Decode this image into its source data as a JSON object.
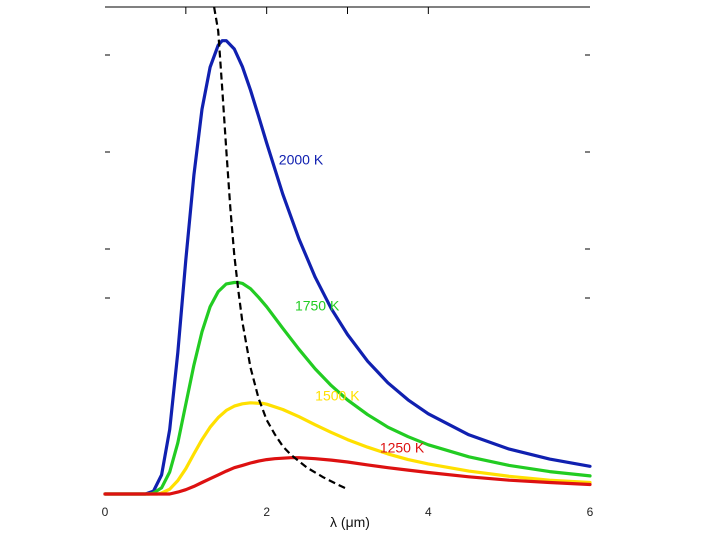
{
  "chart_data": {
    "type": "line",
    "title": "",
    "xlabel": "λ (μm)",
    "ylabel": "",
    "xlim": [
      0,
      6
    ],
    "ylim": [
      0,
      1.02
    ],
    "x_ticks": [
      "0",
      "2",
      "4",
      "6"
    ],
    "grid": false,
    "colors": {
      "2000 K": "#1020b0",
      "1750 K": "#22cc22",
      "1500 K": "#ffe000",
      "1250 K": "#dd1111",
      "peak": "#000000"
    },
    "series": [
      {
        "name": "2000 K",
        "label_text": "2000 K",
        "x": [
          0.0,
          0.5,
          0.6,
          0.7,
          0.8,
          0.9,
          1.0,
          1.1,
          1.2,
          1.3,
          1.4,
          1.45,
          1.5,
          1.6,
          1.7,
          1.8,
          1.9,
          2.0,
          2.2,
          2.4,
          2.6,
          2.8,
          3.0,
          3.25,
          3.5,
          3.75,
          4.0,
          4.5,
          5.0,
          5.5,
          6.0
        ],
        "y": [
          0.0,
          0.0,
          0.006,
          0.04,
          0.135,
          0.296,
          0.49,
          0.668,
          0.806,
          0.894,
          0.94,
          0.9495,
          0.9495,
          0.932,
          0.895,
          0.846,
          0.791,
          0.735,
          0.628,
          0.534,
          0.454,
          0.388,
          0.334,
          0.278,
          0.233,
          0.197,
          0.168,
          0.124,
          0.094,
          0.073,
          0.058
        ]
      },
      {
        "name": "1750 K",
        "label_text": "1750 K",
        "x": [
          0.0,
          0.55,
          0.6,
          0.7,
          0.8,
          0.9,
          1.0,
          1.1,
          1.2,
          1.3,
          1.4,
          1.5,
          1.6,
          1.65,
          1.7,
          1.8,
          1.9,
          2.0,
          2.2,
          2.4,
          2.6,
          2.8,
          3.0,
          3.25,
          3.5,
          3.75,
          4.0,
          4.5,
          5.0,
          5.5,
          6.0
        ],
        "y": [
          0.0,
          0.0,
          0.002,
          0.013,
          0.046,
          0.107,
          0.188,
          0.27,
          0.34,
          0.392,
          0.424,
          0.44,
          0.443,
          0.443,
          0.441,
          0.43,
          0.412,
          0.392,
          0.347,
          0.303,
          0.262,
          0.227,
          0.197,
          0.166,
          0.14,
          0.12,
          0.103,
          0.078,
          0.06,
          0.047,
          0.038
        ]
      },
      {
        "name": "1500 K",
        "label_text": "1500 K",
        "x": [
          0.0,
          0.65,
          0.7,
          0.8,
          0.9,
          1.0,
          1.1,
          1.2,
          1.3,
          1.4,
          1.5,
          1.6,
          1.7,
          1.8,
          1.9,
          1.95,
          2.0,
          2.2,
          2.4,
          2.6,
          2.8,
          3.0,
          3.25,
          3.5,
          3.75,
          4.0,
          4.5,
          5.0,
          5.5,
          6.0
        ],
        "y": [
          0.0,
          0.0,
          0.002,
          0.01,
          0.028,
          0.053,
          0.084,
          0.114,
          0.14,
          0.16,
          0.175,
          0.184,
          0.189,
          0.191,
          0.19,
          0.19,
          0.188,
          0.177,
          0.162,
          0.145,
          0.129,
          0.114,
          0.098,
          0.084,
          0.072,
          0.063,
          0.048,
          0.037,
          0.029,
          0.024
        ]
      },
      {
        "name": "1250 K",
        "label_text": "1250 K",
        "x": [
          0.0,
          0.8,
          0.9,
          1.0,
          1.1,
          1.2,
          1.3,
          1.4,
          1.5,
          1.6,
          1.7,
          1.8,
          1.9,
          2.0,
          2.1,
          2.2,
          2.3,
          2.35,
          2.4,
          2.6,
          2.8,
          3.0,
          3.25,
          3.5,
          3.75,
          4.0,
          4.5,
          5.0,
          5.5,
          6.0
        ],
        "y": [
          0.0,
          0.0,
          0.004,
          0.009,
          0.016,
          0.024,
          0.032,
          0.04,
          0.048,
          0.055,
          0.06,
          0.065,
          0.069,
          0.072,
          0.074,
          0.075,
          0.076,
          0.076,
          0.076,
          0.074,
          0.071,
          0.067,
          0.061,
          0.055,
          0.05,
          0.045,
          0.036,
          0.029,
          0.024,
          0.02
        ]
      },
      {
        "name": "",
        "style": "dashed",
        "color_key": "peak",
        "x": [
          1.35,
          1.4,
          1.45,
          1.5,
          1.55,
          1.6,
          1.65,
          1.7,
          1.8,
          1.9,
          2.0,
          2.1,
          2.2,
          2.3,
          2.5,
          2.7,
          2.9,
          3.0
        ],
        "y": [
          1.02,
          0.97,
          0.85,
          0.72,
          0.6,
          0.5,
          0.425,
          0.36,
          0.265,
          0.2,
          0.155,
          0.125,
          0.1,
          0.082,
          0.055,
          0.035,
          0.018,
          0.01
        ]
      }
    ],
    "labels": [
      {
        "series": "2000 K",
        "text": "2000 K",
        "x": 2.15,
        "y": 0.69
      },
      {
        "series": "1750 K",
        "text": "1750 K",
        "x": 2.35,
        "y": 0.384
      },
      {
        "series": "1500 K",
        "text": "1500 K",
        "x": 2.6,
        "y": 0.196
      },
      {
        "series": "1250 K",
        "text": "1250 K",
        "x": 3.4,
        "y": 0.087
      }
    ]
  }
}
